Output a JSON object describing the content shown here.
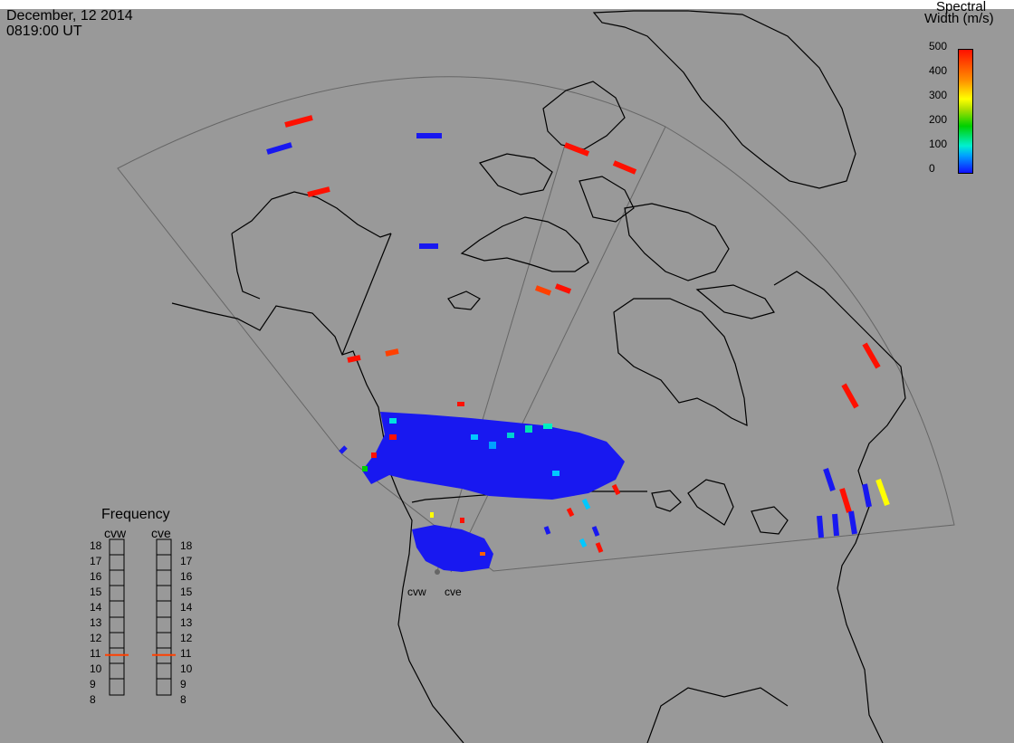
{
  "header": {
    "date": "December, 12 2014",
    "time": "0819:00 UT"
  },
  "colorbar": {
    "title_line1": "Spectral",
    "title_line2": "Width (m/s)",
    "ticks": [
      "500",
      "400",
      "300",
      "200",
      "100",
      "0"
    ]
  },
  "frequency_panel": {
    "title": "Frequency",
    "sites": [
      "cvw",
      "cve"
    ],
    "left_ticks": [
      "18",
      "17",
      "16",
      "15",
      "14",
      "13",
      "12",
      "11",
      "10",
      "9",
      "8"
    ],
    "right_ticks": [
      "18",
      "17",
      "16",
      "15",
      "14",
      "13",
      "12",
      "11",
      "10",
      "9",
      "8"
    ],
    "cvw_frequency": 10.6,
    "cve_frequency": 10.6
  },
  "radars": {
    "west_label": "cvw",
    "east_label": "cve"
  },
  "colors": {
    "background": "#999999",
    "low": "#1010ff",
    "high": "#ff1000",
    "mid": "#00d000",
    "accent": "#ff4000"
  }
}
